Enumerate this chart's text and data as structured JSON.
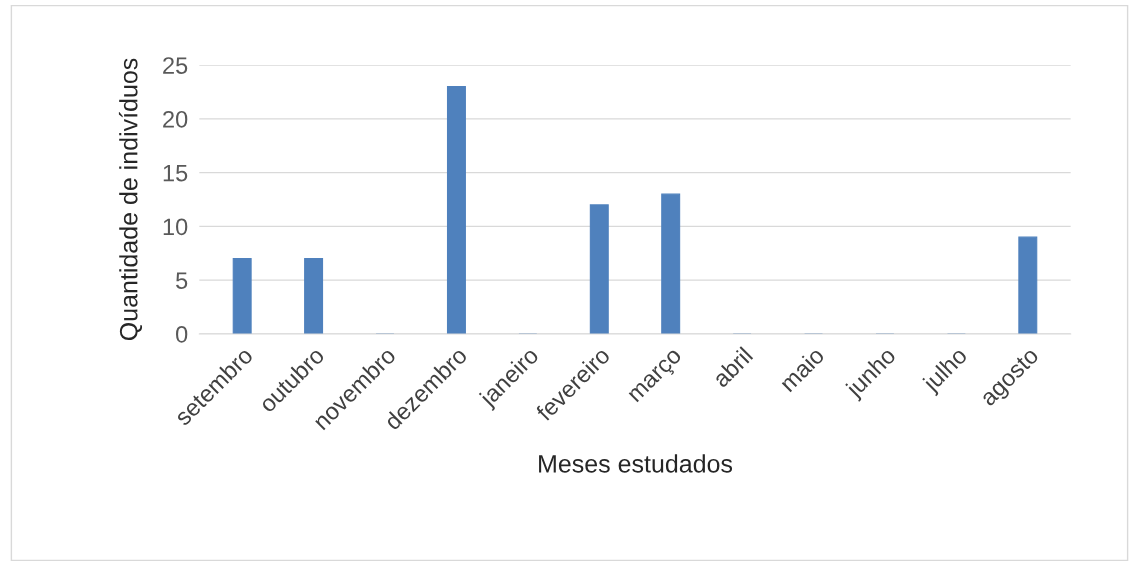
{
  "chart_data": {
    "type": "bar",
    "xlabel": "Meses estudados",
    "ylabel": "Quantidade de indivíduos",
    "categories": [
      "setembro",
      "outubro",
      "novembro",
      "dezembro",
      "janeiro",
      "fevereiro",
      "março",
      "abril",
      "maio",
      "junho",
      "julho",
      "agosto"
    ],
    "values": [
      7,
      7,
      0,
      23,
      0,
      12,
      13,
      0,
      0,
      0,
      0,
      9
    ],
    "color": "#4f81bd",
    "ylim": [
      0,
      25
    ],
    "yticks": [
      0,
      5,
      10,
      15,
      20,
      25
    ],
    "grid": "y"
  }
}
